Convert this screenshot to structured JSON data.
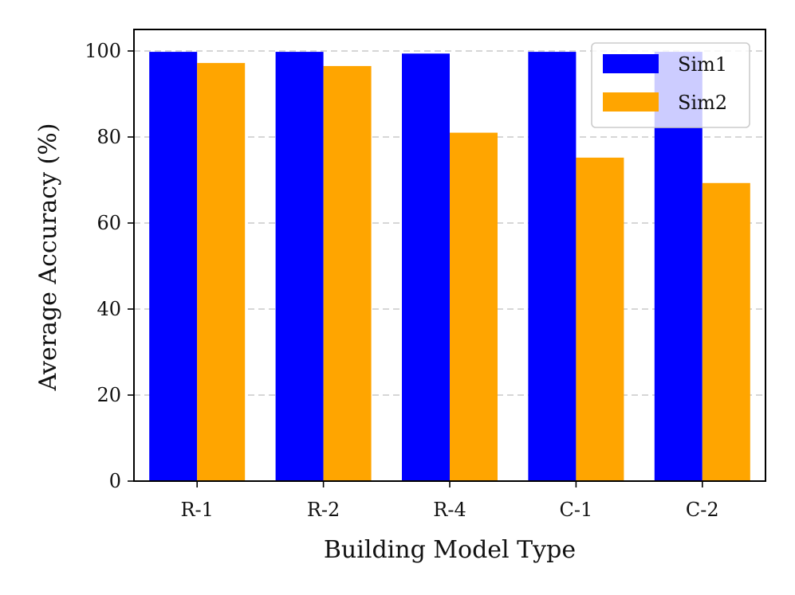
{
  "chart_data": {
    "type": "bar",
    "categories": [
      "R-1",
      "R-2",
      "R-4",
      "C-1",
      "C-2"
    ],
    "series": [
      {
        "name": "Sim1",
        "values": [
          99.8,
          99.8,
          99.4,
          99.8,
          99.8
        ],
        "color": "#0000ff"
      },
      {
        "name": "Sim2",
        "values": [
          97.2,
          96.5,
          81.0,
          75.2,
          69.3
        ],
        "color": "#ffa500"
      }
    ],
    "xlabel": "Building Model Type",
    "ylabel": "Average Accuracy (%)",
    "ylim": [
      0,
      105
    ],
    "yticks": [
      0,
      20,
      40,
      60,
      80,
      100
    ],
    "grid": "y-dashed",
    "legend_position": "top-right"
  }
}
